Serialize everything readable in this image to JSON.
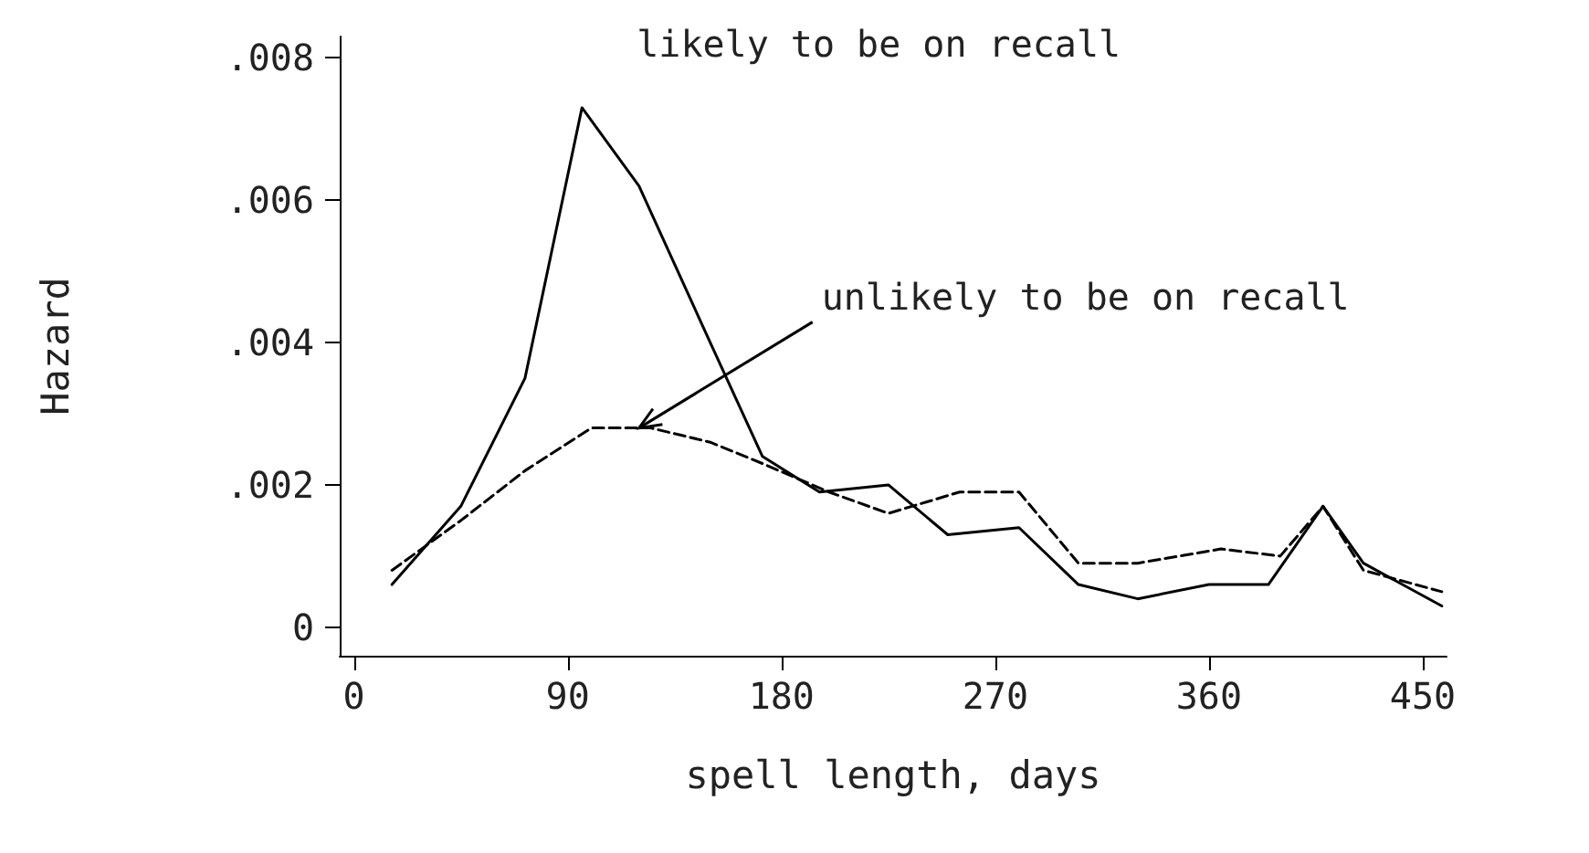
{
  "chart_data": {
    "type": "line",
    "xlabel": "spell length, days",
    "ylabel": "Hazard",
    "xlim": [
      -6,
      460
    ],
    "xticks": [
      0,
      90,
      180,
      270,
      360,
      450
    ],
    "ylim": [
      -0.0004,
      0.0083
    ],
    "yticks": [
      {
        "value": 0,
        "label": "0"
      },
      {
        "value": 0.002,
        "label": ".002"
      },
      {
        "value": 0.004,
        "label": ".004"
      },
      {
        "value": 0.006,
        "label": ".006"
      },
      {
        "value": 0.008,
        "label": ".008"
      }
    ],
    "grid": false,
    "legend": false,
    "marker": "none",
    "series": [
      {
        "color": "#000000",
        "line_style": "solid",
        "x": [
          16,
          45,
          72,
          96,
          120,
          150,
          172,
          196,
          225,
          250,
          280,
          305,
          330,
          360,
          385,
          408,
          425,
          458
        ],
        "values": [
          0.0006,
          0.0017,
          0.0035,
          0.0073,
          0.0062,
          0.004,
          0.0024,
          0.0019,
          0.002,
          0.0013,
          0.0014,
          0.0006,
          0.0004,
          0.0006,
          0.0006,
          0.0017,
          0.0009,
          0.0003
        ]
      },
      {
        "color": "#000000",
        "line_style": "dashed",
        "x": [
          16,
          45,
          72,
          100,
          125,
          150,
          172,
          200,
          225,
          255,
          280,
          305,
          330,
          365,
          390,
          408,
          425,
          458
        ],
        "values": [
          0.0008,
          0.0015,
          0.0022,
          0.0028,
          0.0028,
          0.0026,
          0.0023,
          0.0019,
          0.0016,
          0.0019,
          0.0019,
          0.0009,
          0.0009,
          0.0011,
          0.001,
          0.0017,
          0.0008,
          0.0005
        ]
      }
    ],
    "annotations": [
      {
        "text": "likely to be on recall",
        "x": 96,
        "y": 0.0073
      },
      {
        "text": "unlikely to be on recall",
        "x": 120,
        "y": 0.0028
      }
    ]
  }
}
